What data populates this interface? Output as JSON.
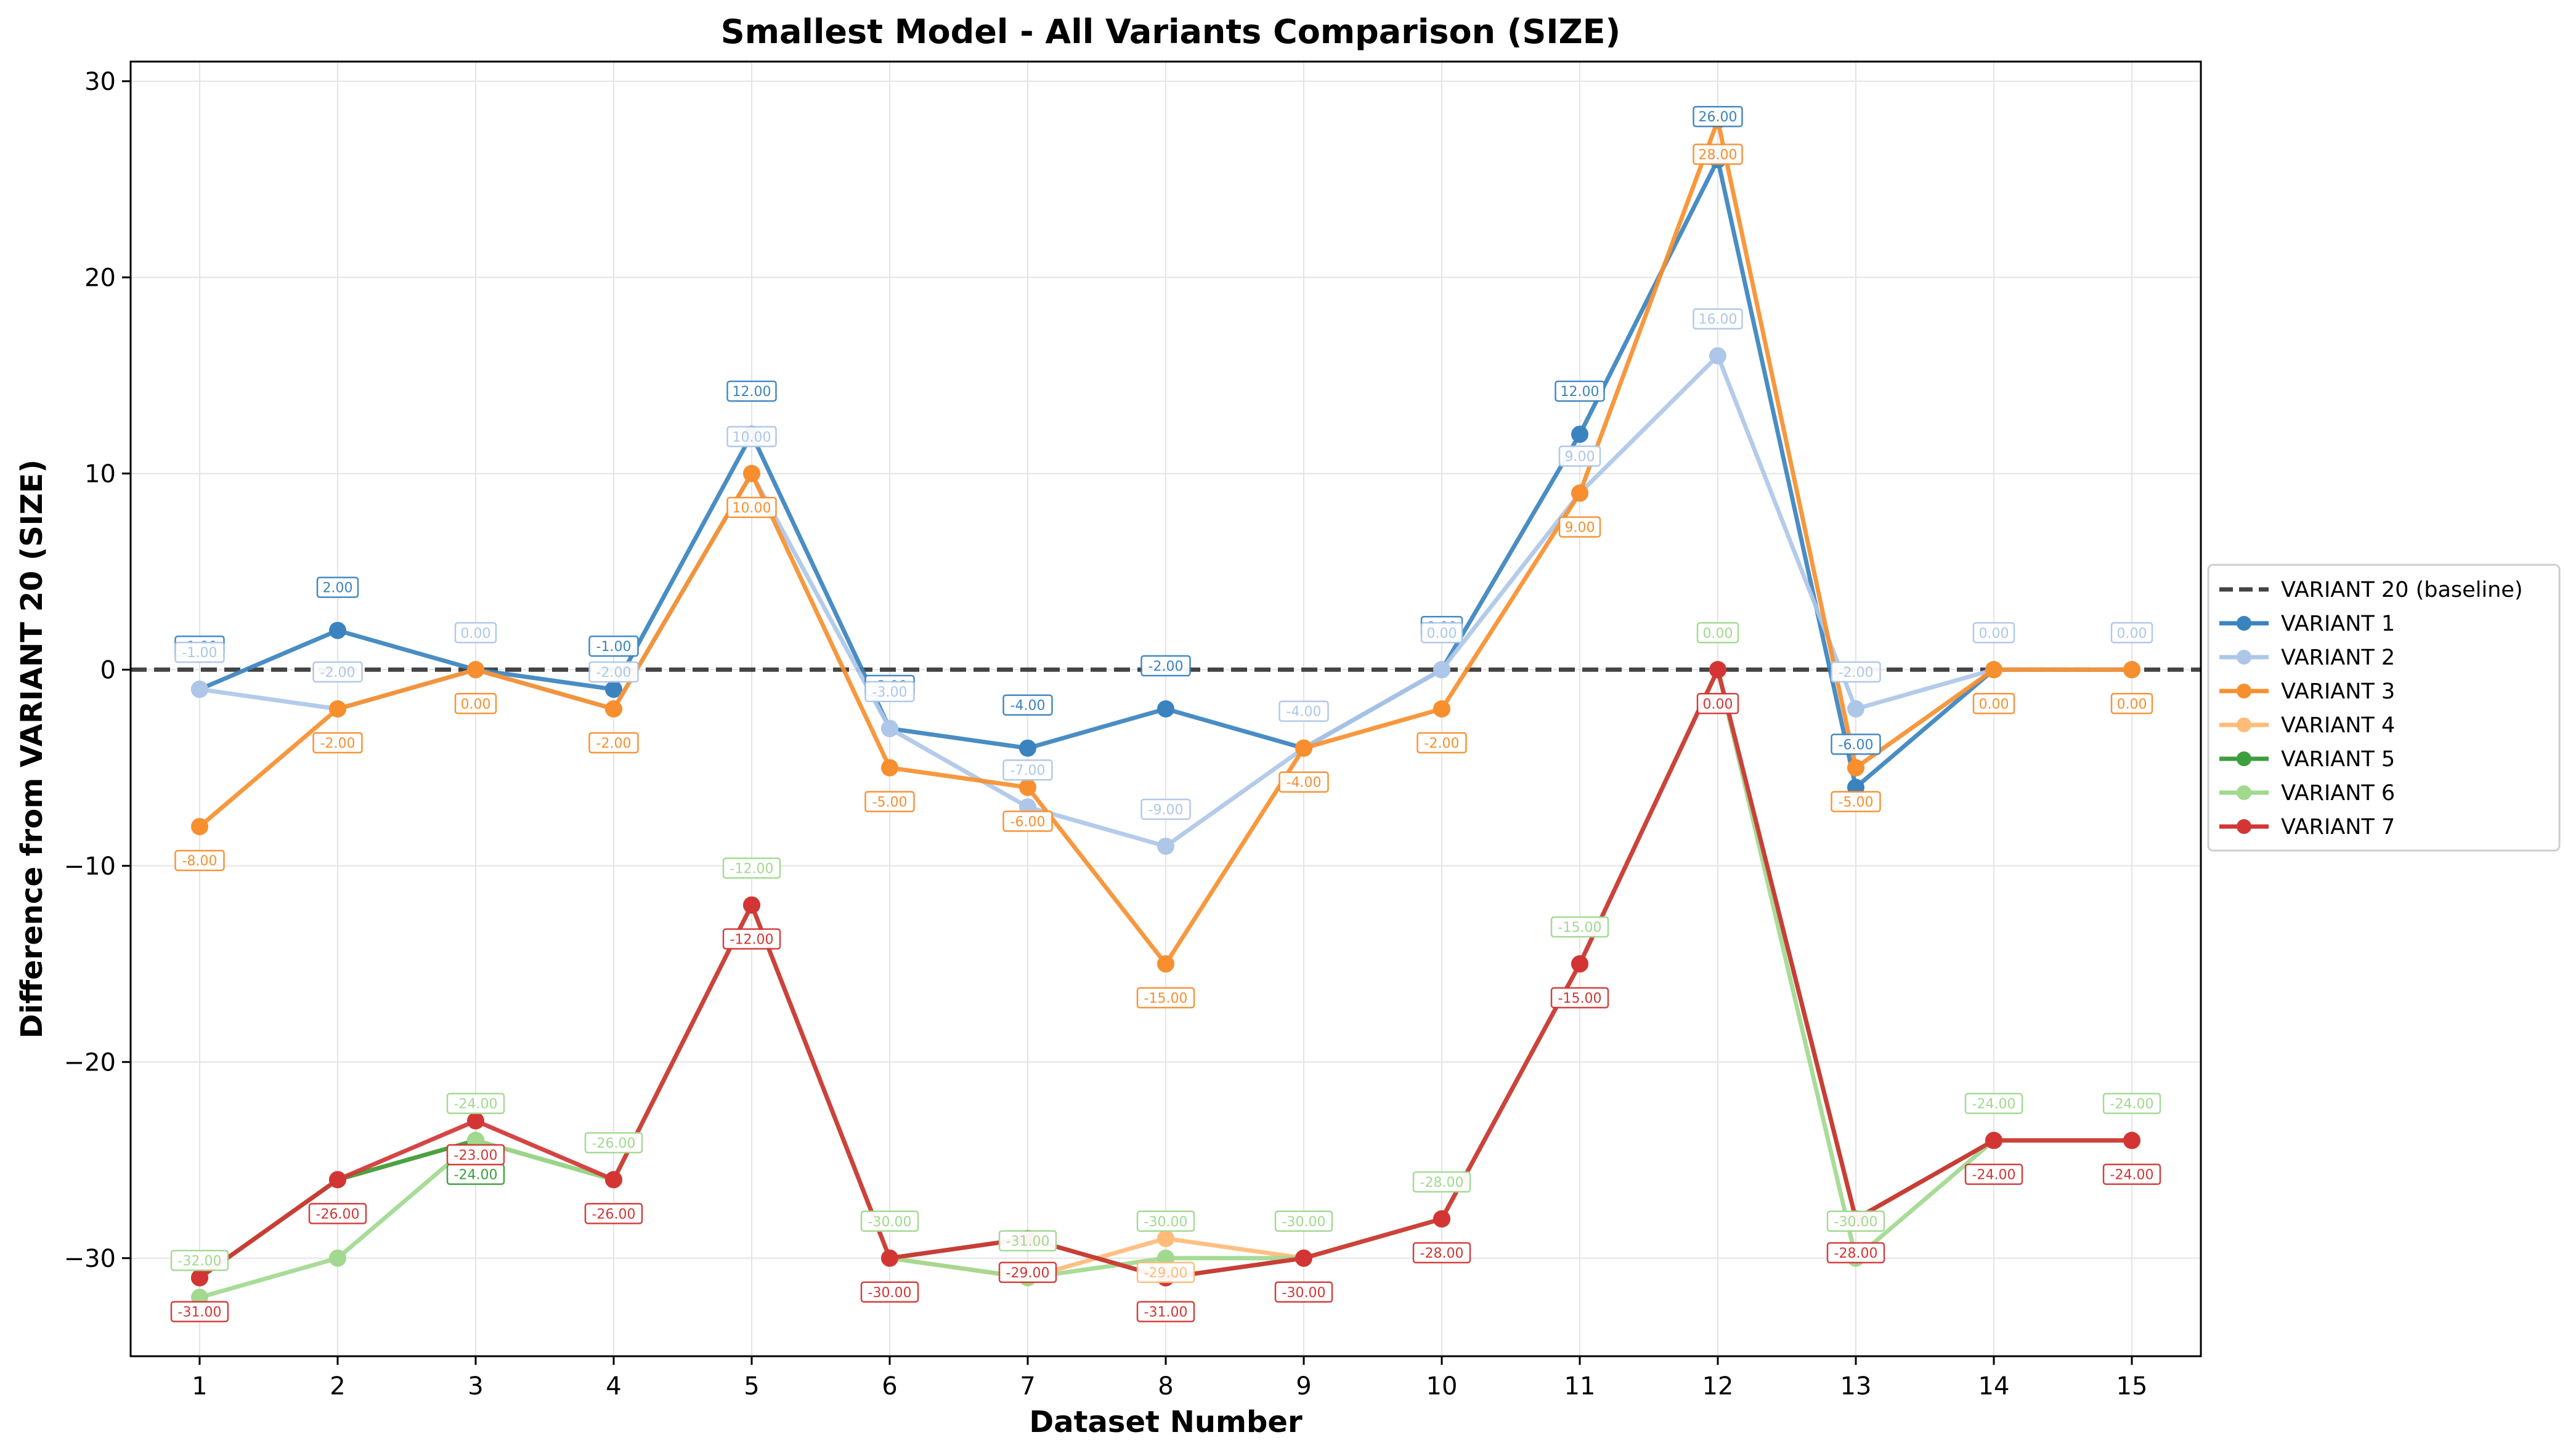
{
  "chart_data": {
    "type": "line",
    "title": "Smallest Model - All Variants Comparison (SIZE)",
    "xlabel": "Dataset Number",
    "ylabel": "Difference from VARIANT 20 (SIZE)",
    "x": [
      1,
      2,
      3,
      4,
      5,
      6,
      7,
      8,
      9,
      10,
      11,
      12,
      13,
      14,
      15
    ],
    "xlim": [
      0.5,
      15.5
    ],
    "ylim": [
      -35,
      31
    ],
    "yticks": [
      -30,
      -20,
      -10,
      0,
      10,
      20,
      30
    ],
    "grid": true,
    "legend_position": "outside-right",
    "baseline": {
      "name": "VARIANT 20 (baseline)",
      "value": 0,
      "color": "#444444",
      "style": "dashed"
    },
    "series": [
      {
        "name": "VARIANT 1",
        "color": "#3a83bf",
        "values": [
          -1,
          2,
          0,
          -1,
          12,
          -3,
          -4,
          -2,
          -4,
          0,
          12,
          26,
          -6,
          0,
          0
        ],
        "label_values": [
          -1,
          2,
          null,
          -1,
          12,
          -3,
          -4,
          -2,
          null,
          0,
          12,
          26,
          -6,
          null,
          null
        ]
      },
      {
        "name": "VARIANT 2",
        "color": "#aec7e8",
        "values": [
          -1,
          -2,
          0,
          -2,
          10,
          -3,
          -7,
          -9,
          -4,
          0,
          9,
          16,
          -2,
          0,
          0
        ],
        "label_values": [
          -1,
          -2,
          0,
          -2,
          10,
          -3,
          -7,
          -9,
          -4,
          0,
          9,
          16,
          -2,
          0,
          0
        ]
      },
      {
        "name": "VARIANT 3",
        "color": "#f78f2e",
        "values": [
          -8,
          -2,
          0,
          -2,
          10,
          -5,
          -6,
          -15,
          -4,
          -2,
          9,
          28,
          -5,
          0,
          0
        ],
        "label_values": [
          -8,
          -2,
          0,
          -2,
          10,
          -5,
          -6,
          -15,
          -4,
          -2,
          9,
          28,
          -5,
          0,
          0
        ]
      },
      {
        "name": "VARIANT 4",
        "color": "#ffbb78",
        "values": [
          -31,
          -26,
          -24,
          -26,
          -12,
          -30,
          -31,
          -29,
          -30,
          -28,
          -15,
          0,
          -28,
          -24,
          -24
        ],
        "label_values": [
          null,
          null,
          null,
          null,
          null,
          null,
          null,
          -29,
          null,
          null,
          null,
          null,
          null,
          null,
          null
        ]
      },
      {
        "name": "VARIANT 5",
        "color": "#3d9e3d",
        "values": [
          -31,
          -26,
          -24,
          -26,
          -12,
          -30,
          -29,
          -31,
          -30,
          -28,
          -15,
          0,
          -28,
          -24,
          -24
        ],
        "label_values": [
          null,
          null,
          -24,
          null,
          null,
          null,
          null,
          null,
          null,
          null,
          null,
          null,
          null,
          null,
          null
        ]
      },
      {
        "name": "VARIANT 6",
        "color": "#a1d98f",
        "values": [
          -32,
          -30,
          -24,
          -26,
          -12,
          -30,
          -31,
          -30,
          -30,
          -28,
          -15,
          0,
          -30,
          -24,
          -24
        ],
        "label_values": [
          -32,
          null,
          -24,
          -26,
          -12,
          -30,
          -31,
          -30,
          -30,
          -28,
          -15,
          0,
          -30,
          -24,
          -24
        ]
      },
      {
        "name": "VARIANT 7",
        "color": "#d33535",
        "values": [
          -31,
          -26,
          -23,
          -26,
          -12,
          -30,
          -29,
          -31,
          -30,
          -28,
          -15,
          0,
          -28,
          -24,
          -24
        ],
        "label_values": [
          -31,
          -26,
          -23,
          -26,
          -12,
          -30,
          -29,
          -31,
          -30,
          -28,
          -15,
          0,
          -28,
          -24,
          -24
        ]
      }
    ]
  }
}
